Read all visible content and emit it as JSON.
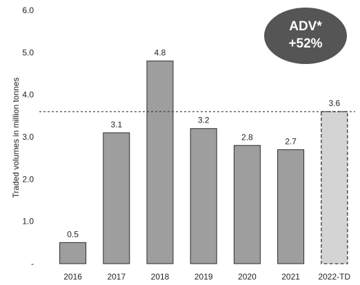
{
  "chart_data": {
    "type": "bar",
    "categories": [
      "2016",
      "2017",
      "2018",
      "2019",
      "2020",
      "2021",
      "2022-TD"
    ],
    "values": [
      0.5,
      3.1,
      4.8,
      3.2,
      2.8,
      2.7,
      3.6
    ],
    "data_labels": [
      "0.5",
      "3.1",
      "4.8",
      "3.2",
      "2.8",
      "2.7",
      "3.6"
    ],
    "ylabel": "Traded volumes in million tonnes",
    "ylim": [
      0,
      6
    ],
    "yticks": [
      0,
      1,
      2,
      3,
      4,
      5,
      6
    ],
    "ytick_labels": [
      "-",
      "1.0",
      "2.0",
      "3.0",
      "4.0",
      "5.0",
      "6.0"
    ],
    "reference_line": {
      "value": 3.6,
      "style": "dashed"
    },
    "highlight_category": "2022-TD",
    "grid": false,
    "colors": {
      "bar": "#9e9e9e",
      "highlight_bar": "#d4d4d4",
      "badge": "#555555"
    },
    "badge": {
      "line1": "ADV*",
      "line2": "+52%"
    }
  }
}
